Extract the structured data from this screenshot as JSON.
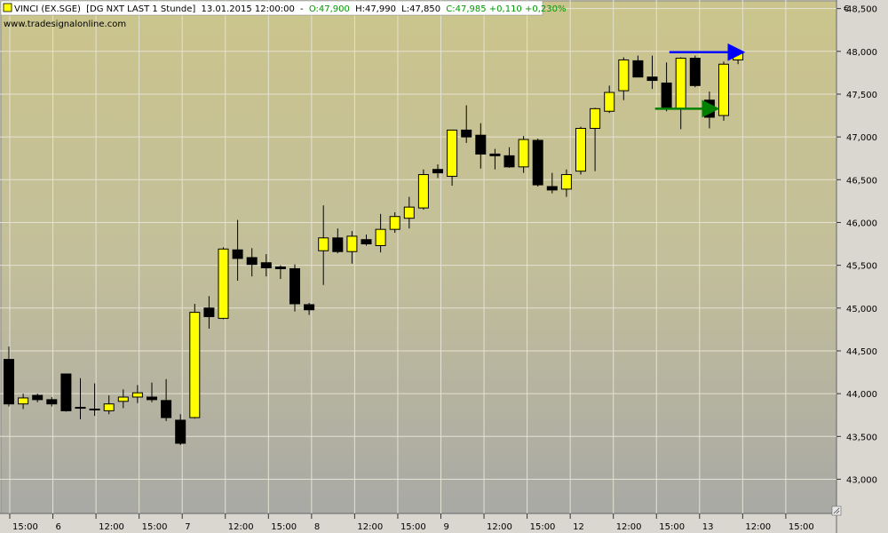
{
  "header": {
    "symbol": "VINCI (EX.SGE)",
    "feed": "[DG NXT LAST 1 Stunde]",
    "datetime": "13.01.2015 12:00:00",
    "open": "O:47,900",
    "high": "H:47,990",
    "low": "L:47,850",
    "close_change": "C:47,985 +0,110 +0,230%",
    "website": "www.tradesignalonline.com",
    "currency": "€"
  },
  "colors": {
    "up": "#ffff00",
    "down": "#000000",
    "close_text": "#009900",
    "arrow_blue": "#0000ff",
    "arrow_green": "#008000"
  },
  "chart_data": {
    "type": "candlestick",
    "ylim": [
      42600,
      48600
    ],
    "yticks": [
      "43,000",
      "43,500",
      "44,000",
      "44,500",
      "45,000",
      "45,500",
      "46,000",
      "46,500",
      "47,000",
      "47,500",
      "48,000",
      "48,500"
    ],
    "xticks": [
      "15:00",
      "6",
      "12:00",
      "15:00",
      "7",
      "12:00",
      "15:00",
      "8",
      "12:00",
      "15:00",
      "9",
      "12:00",
      "15:00",
      "12",
      "12:00",
      "15:00",
      "13",
      "12:00",
      "15:00"
    ],
    "candles": [
      {
        "o": 44400,
        "h": 44550,
        "l": 43850,
        "c": 43880
      },
      {
        "o": 43880,
        "h": 44000,
        "l": 43820,
        "c": 43950
      },
      {
        "o": 43980,
        "h": 44000,
        "l": 43900,
        "c": 43930
      },
      {
        "o": 43930,
        "h": 43960,
        "l": 43850,
        "c": 43880
      },
      {
        "o": 44230,
        "h": 44230,
        "l": 43790,
        "c": 43800
      },
      {
        "o": 43840,
        "h": 44180,
        "l": 43700,
        "c": 43840
      },
      {
        "o": 43820,
        "h": 44120,
        "l": 43740,
        "c": 43820
      },
      {
        "o": 43800,
        "h": 43980,
        "l": 43760,
        "c": 43880
      },
      {
        "o": 43910,
        "h": 44050,
        "l": 43830,
        "c": 43960
      },
      {
        "o": 43960,
        "h": 44100,
        "l": 43890,
        "c": 44010
      },
      {
        "o": 43960,
        "h": 44130,
        "l": 43900,
        "c": 43930
      },
      {
        "o": 43920,
        "h": 44170,
        "l": 43680,
        "c": 43720
      },
      {
        "o": 43690,
        "h": 43760,
        "l": 43400,
        "c": 43420
      },
      {
        "o": 43720,
        "h": 45050,
        "l": 43710,
        "c": 44950
      },
      {
        "o": 45000,
        "h": 45140,
        "l": 44760,
        "c": 44900
      },
      {
        "o": 44880,
        "h": 45710,
        "l": 44870,
        "c": 45690
      },
      {
        "o": 45680,
        "h": 46030,
        "l": 45320,
        "c": 45580
      },
      {
        "o": 45590,
        "h": 45700,
        "l": 45370,
        "c": 45510
      },
      {
        "o": 45530,
        "h": 45630,
        "l": 45370,
        "c": 45470
      },
      {
        "o": 45480,
        "h": 45500,
        "l": 45340,
        "c": 45460
      },
      {
        "o": 45460,
        "h": 45510,
        "l": 44960,
        "c": 45050
      },
      {
        "o": 45040,
        "h": 45060,
        "l": 44920,
        "c": 44980
      },
      {
        "o": 45670,
        "h": 46200,
        "l": 45270,
        "c": 45820
      },
      {
        "o": 45820,
        "h": 45930,
        "l": 45640,
        "c": 45660
      },
      {
        "o": 45660,
        "h": 45900,
        "l": 45520,
        "c": 45840
      },
      {
        "o": 45800,
        "h": 45860,
        "l": 45730,
        "c": 45750
      },
      {
        "o": 45730,
        "h": 46100,
        "l": 45650,
        "c": 45920
      },
      {
        "o": 45920,
        "h": 46120,
        "l": 45880,
        "c": 46070
      },
      {
        "o": 46050,
        "h": 46300,
        "l": 45930,
        "c": 46180
      },
      {
        "o": 46170,
        "h": 46620,
        "l": 46150,
        "c": 46560
      },
      {
        "o": 46620,
        "h": 46680,
        "l": 46520,
        "c": 46580
      },
      {
        "o": 46540,
        "h": 47080,
        "l": 46430,
        "c": 47080
      },
      {
        "o": 47080,
        "h": 47370,
        "l": 46930,
        "c": 47000
      },
      {
        "o": 47020,
        "h": 47160,
        "l": 46630,
        "c": 46800
      },
      {
        "o": 46800,
        "h": 46860,
        "l": 46620,
        "c": 46780
      },
      {
        "o": 46780,
        "h": 46880,
        "l": 46640,
        "c": 46650
      },
      {
        "o": 46650,
        "h": 47010,
        "l": 46580,
        "c": 46970
      },
      {
        "o": 46960,
        "h": 46980,
        "l": 46420,
        "c": 46440
      },
      {
        "o": 46420,
        "h": 46580,
        "l": 46340,
        "c": 46380
      },
      {
        "o": 46390,
        "h": 46620,
        "l": 46300,
        "c": 46560
      },
      {
        "o": 46600,
        "h": 47120,
        "l": 46560,
        "c": 47100
      },
      {
        "o": 47100,
        "h": 47340,
        "l": 46600,
        "c": 47330
      },
      {
        "o": 47300,
        "h": 47600,
        "l": 47280,
        "c": 47520
      },
      {
        "o": 47540,
        "h": 47930,
        "l": 47430,
        "c": 47900
      },
      {
        "o": 47890,
        "h": 47950,
        "l": 47700,
        "c": 47700
      },
      {
        "o": 47700,
        "h": 47950,
        "l": 47560,
        "c": 47660
      },
      {
        "o": 47630,
        "h": 47870,
        "l": 47300,
        "c": 47330
      },
      {
        "o": 47330,
        "h": 47930,
        "l": 47090,
        "c": 47920
      },
      {
        "o": 47920,
        "h": 47950,
        "l": 47580,
        "c": 47600
      },
      {
        "o": 47430,
        "h": 47530,
        "l": 47100,
        "c": 47230
      },
      {
        "o": 47250,
        "h": 47880,
        "l": 47190,
        "c": 47850
      },
      {
        "o": 47900,
        "h": 47990,
        "l": 47850,
        "c": 47985
      }
    ],
    "arrows": [
      {
        "color": "blue",
        "from_index": 46.2,
        "to_index": 51.2,
        "y": 47990
      },
      {
        "color": "green",
        "from_index": 45.2,
        "to_index": 49.4,
        "y": 47330
      }
    ]
  }
}
